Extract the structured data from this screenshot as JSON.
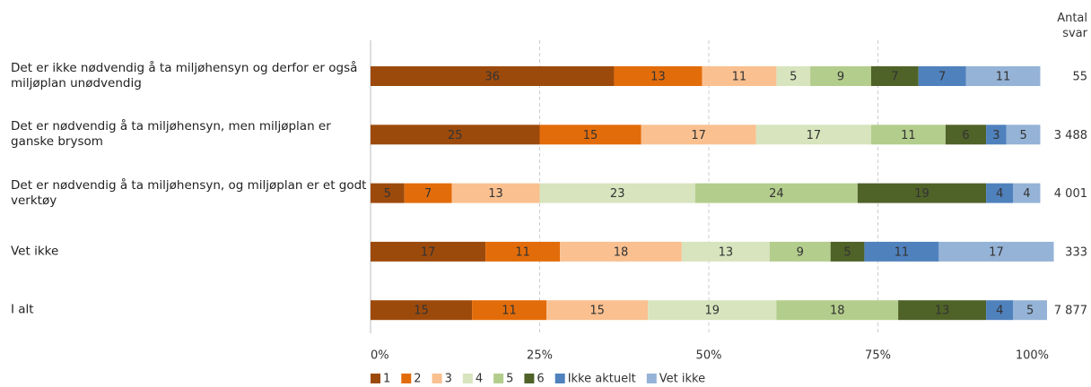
{
  "chart_data": {
    "type": "stacked_barh",
    "count_title": "Antal svar",
    "categories": [
      "Det er ikke nødvendig å ta miljøhensyn og derfor er også miljøplan unødvendig",
      "Det er nødvendig å ta miljøhensyn, men miljøplan er ganske brysom",
      "Det er nødvendig å ta miljøhensyn, og miljøplan er et godt verktøy",
      "Vet ikke",
      "I alt"
    ],
    "counts": [
      "55",
      "3 488",
      "4 001",
      "333",
      "7 877"
    ],
    "series": [
      {
        "name": "1",
        "color": "#9c4a0c",
        "values": [
          36,
          25,
          5,
          17,
          15
        ]
      },
      {
        "name": "2",
        "color": "#e36c0a",
        "values": [
          13,
          15,
          7,
          11,
          11
        ]
      },
      {
        "name": "3",
        "color": "#fac090",
        "values": [
          11,
          17,
          13,
          18,
          15
        ]
      },
      {
        "name": "4",
        "color": "#d7e4bd",
        "values": [
          5,
          17,
          23,
          13,
          19
        ]
      },
      {
        "name": "5",
        "color": "#b3cd8c",
        "values": [
          9,
          11,
          24,
          9,
          18
        ]
      },
      {
        "name": "6",
        "color": "#4f6228",
        "values": [
          7,
          6,
          19,
          5,
          13
        ]
      },
      {
        "name": "Ikke aktuelt",
        "color": "#4f81bd",
        "values": [
          7,
          3,
          4,
          11,
          4
        ]
      },
      {
        "name": "Vet ikke",
        "color": "#95b3d7",
        "values": [
          11,
          5,
          4,
          17,
          5
        ]
      }
    ],
    "xlim": [
      0,
      100
    ],
    "xticks": [
      {
        "value": 0,
        "label": "0%"
      },
      {
        "value": 25,
        "label": "25%"
      },
      {
        "value": 50,
        "label": "50%"
      },
      {
        "value": 75,
        "label": "75%"
      },
      {
        "value": 100,
        "label": "100%"
      }
    ],
    "grid": true
  }
}
